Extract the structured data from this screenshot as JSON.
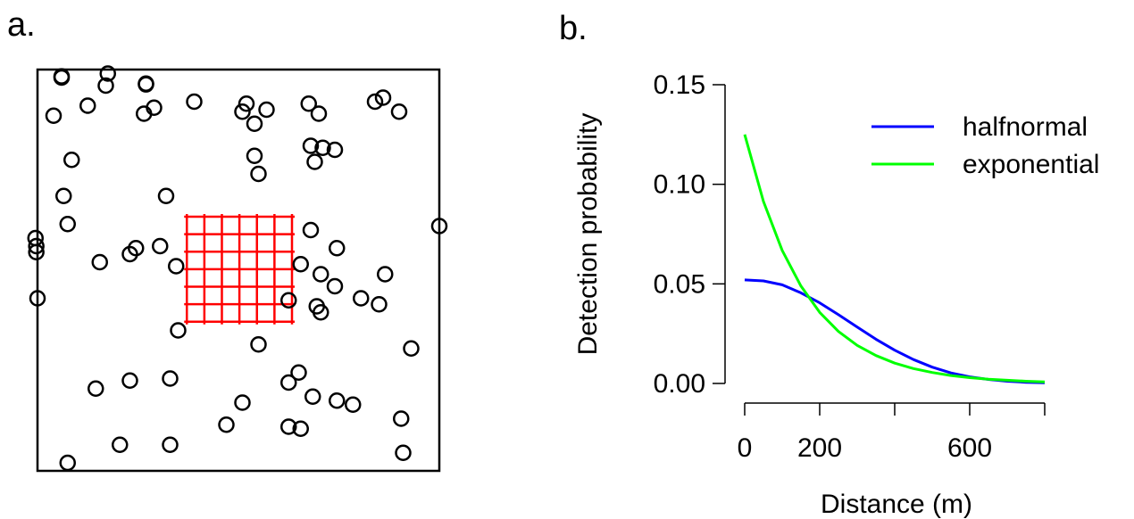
{
  "chart_data": [
    {
      "type": "scatter",
      "panel_label": "a.",
      "title": "",
      "xlabel": "",
      "ylabel": "",
      "axes_shown": false,
      "frame": true,
      "xlim": [
        0,
        100
      ],
      "ylim": [
        0,
        100
      ],
      "marker": "open-circle",
      "marker_color": "#000000",
      "points": [
        [
          6,
          98
        ],
        [
          6,
          98.3
        ],
        [
          17.5,
          99
        ],
        [
          17,
          96
        ],
        [
          27,
          96.5
        ],
        [
          27,
          96.3
        ],
        [
          12.5,
          91
        ],
        [
          29,
          90.5
        ],
        [
          39,
          92
        ],
        [
          84,
          92
        ],
        [
          86,
          93
        ],
        [
          4,
          88.5
        ],
        [
          26.5,
          89
        ],
        [
          90,
          89.5
        ],
        [
          57,
          90
        ],
        [
          54,
          86.5
        ],
        [
          51,
          89.5
        ],
        [
          52,
          91.5
        ],
        [
          67.5,
          91.5
        ],
        [
          70,
          89
        ],
        [
          68,
          81
        ],
        [
          71,
          80.5
        ],
        [
          74,
          80
        ],
        [
          54,
          78.5
        ],
        [
          69,
          77
        ],
        [
          55,
          74
        ],
        [
          8.5,
          77.5
        ],
        [
          6.5,
          68.5
        ],
        [
          32,
          68.5
        ],
        [
          7.5,
          61.5
        ],
        [
          -0.5,
          58
        ],
        [
          -0.3,
          56
        ],
        [
          -0.3,
          54.5
        ],
        [
          0,
          43
        ],
        [
          100,
          61
        ],
        [
          68,
          60
        ],
        [
          74.5,
          55.5
        ],
        [
          24.5,
          55.5
        ],
        [
          30.5,
          56
        ],
        [
          23,
          54
        ],
        [
          15.5,
          52
        ],
        [
          65.5,
          51.5
        ],
        [
          70.5,
          49
        ],
        [
          34.5,
          51
        ],
        [
          86.5,
          49
        ],
        [
          74,
          46
        ],
        [
          62.5,
          42.5
        ],
        [
          80.5,
          43
        ],
        [
          69.5,
          41
        ],
        [
          70.5,
          39.5
        ],
        [
          85,
          41.5
        ],
        [
          35,
          35
        ],
        [
          55,
          31.5
        ],
        [
          93,
          30.5
        ],
        [
          65,
          24.5
        ],
        [
          23,
          22.5
        ],
        [
          33,
          23
        ],
        [
          62.5,
          22
        ],
        [
          14.5,
          20.5
        ],
        [
          68.5,
          18.5
        ],
        [
          74.5,
          17.5
        ],
        [
          78.5,
          16.5
        ],
        [
          51,
          17
        ],
        [
          90.5,
          13
        ],
        [
          47,
          11.5
        ],
        [
          62.5,
          11
        ],
        [
          65.5,
          10.5
        ],
        [
          20.5,
          6.5
        ],
        [
          33,
          6.5
        ],
        [
          91,
          4.5
        ],
        [
          7.5,
          2
        ]
      ],
      "trap_grid": {
        "color": "#ff0000",
        "x_range": [
          36.5,
          64
        ],
        "y_range": [
          36.5,
          64
        ],
        "vertical_lines": 7,
        "horizontal_lines": 7
      }
    },
    {
      "type": "line",
      "panel_label": "b.",
      "title": "",
      "xlabel": "Distance  (m)",
      "ylabel": "Detection probability",
      "xlim": [
        0,
        800
      ],
      "ylim": [
        0,
        0.15
      ],
      "x_ticks": [
        0,
        200,
        400,
        600,
        800
      ],
      "x_tick_labels": [
        "0",
        "200",
        "",
        "600",
        ""
      ],
      "y_ticks": [
        0,
        0.05,
        0.1,
        0.15
      ],
      "y_tick_labels": [
        "0.00",
        "0.05",
        "0.10",
        "0.15"
      ],
      "legend_position": "top-right",
      "series": [
        {
          "name": "halfnormal",
          "color": "#0000ff",
          "x": [
            0,
            50,
            100,
            150,
            200,
            250,
            300,
            350,
            400,
            450,
            500,
            550,
            600,
            650,
            700,
            750,
            800
          ],
          "y": [
            0.052,
            0.0515,
            0.0495,
            0.0455,
            0.0405,
            0.0345,
            0.0283,
            0.0222,
            0.0167,
            0.012,
            0.0082,
            0.0053,
            0.0033,
            0.002,
            0.0011,
            0.0006,
            0.0003
          ]
        },
        {
          "name": "exponential",
          "color": "#00ff00",
          "x": [
            0,
            50,
            100,
            150,
            200,
            250,
            300,
            350,
            400,
            450,
            500,
            550,
            600,
            650,
            700,
            750,
            800
          ],
          "y": [
            0.125,
            0.0914,
            0.0668,
            0.0489,
            0.0357,
            0.0261,
            0.0191,
            0.014,
            0.0102,
            0.0075,
            0.0055,
            0.004,
            0.0029,
            0.0021,
            0.0016,
            0.0011,
            0.0008
          ]
        }
      ]
    }
  ]
}
